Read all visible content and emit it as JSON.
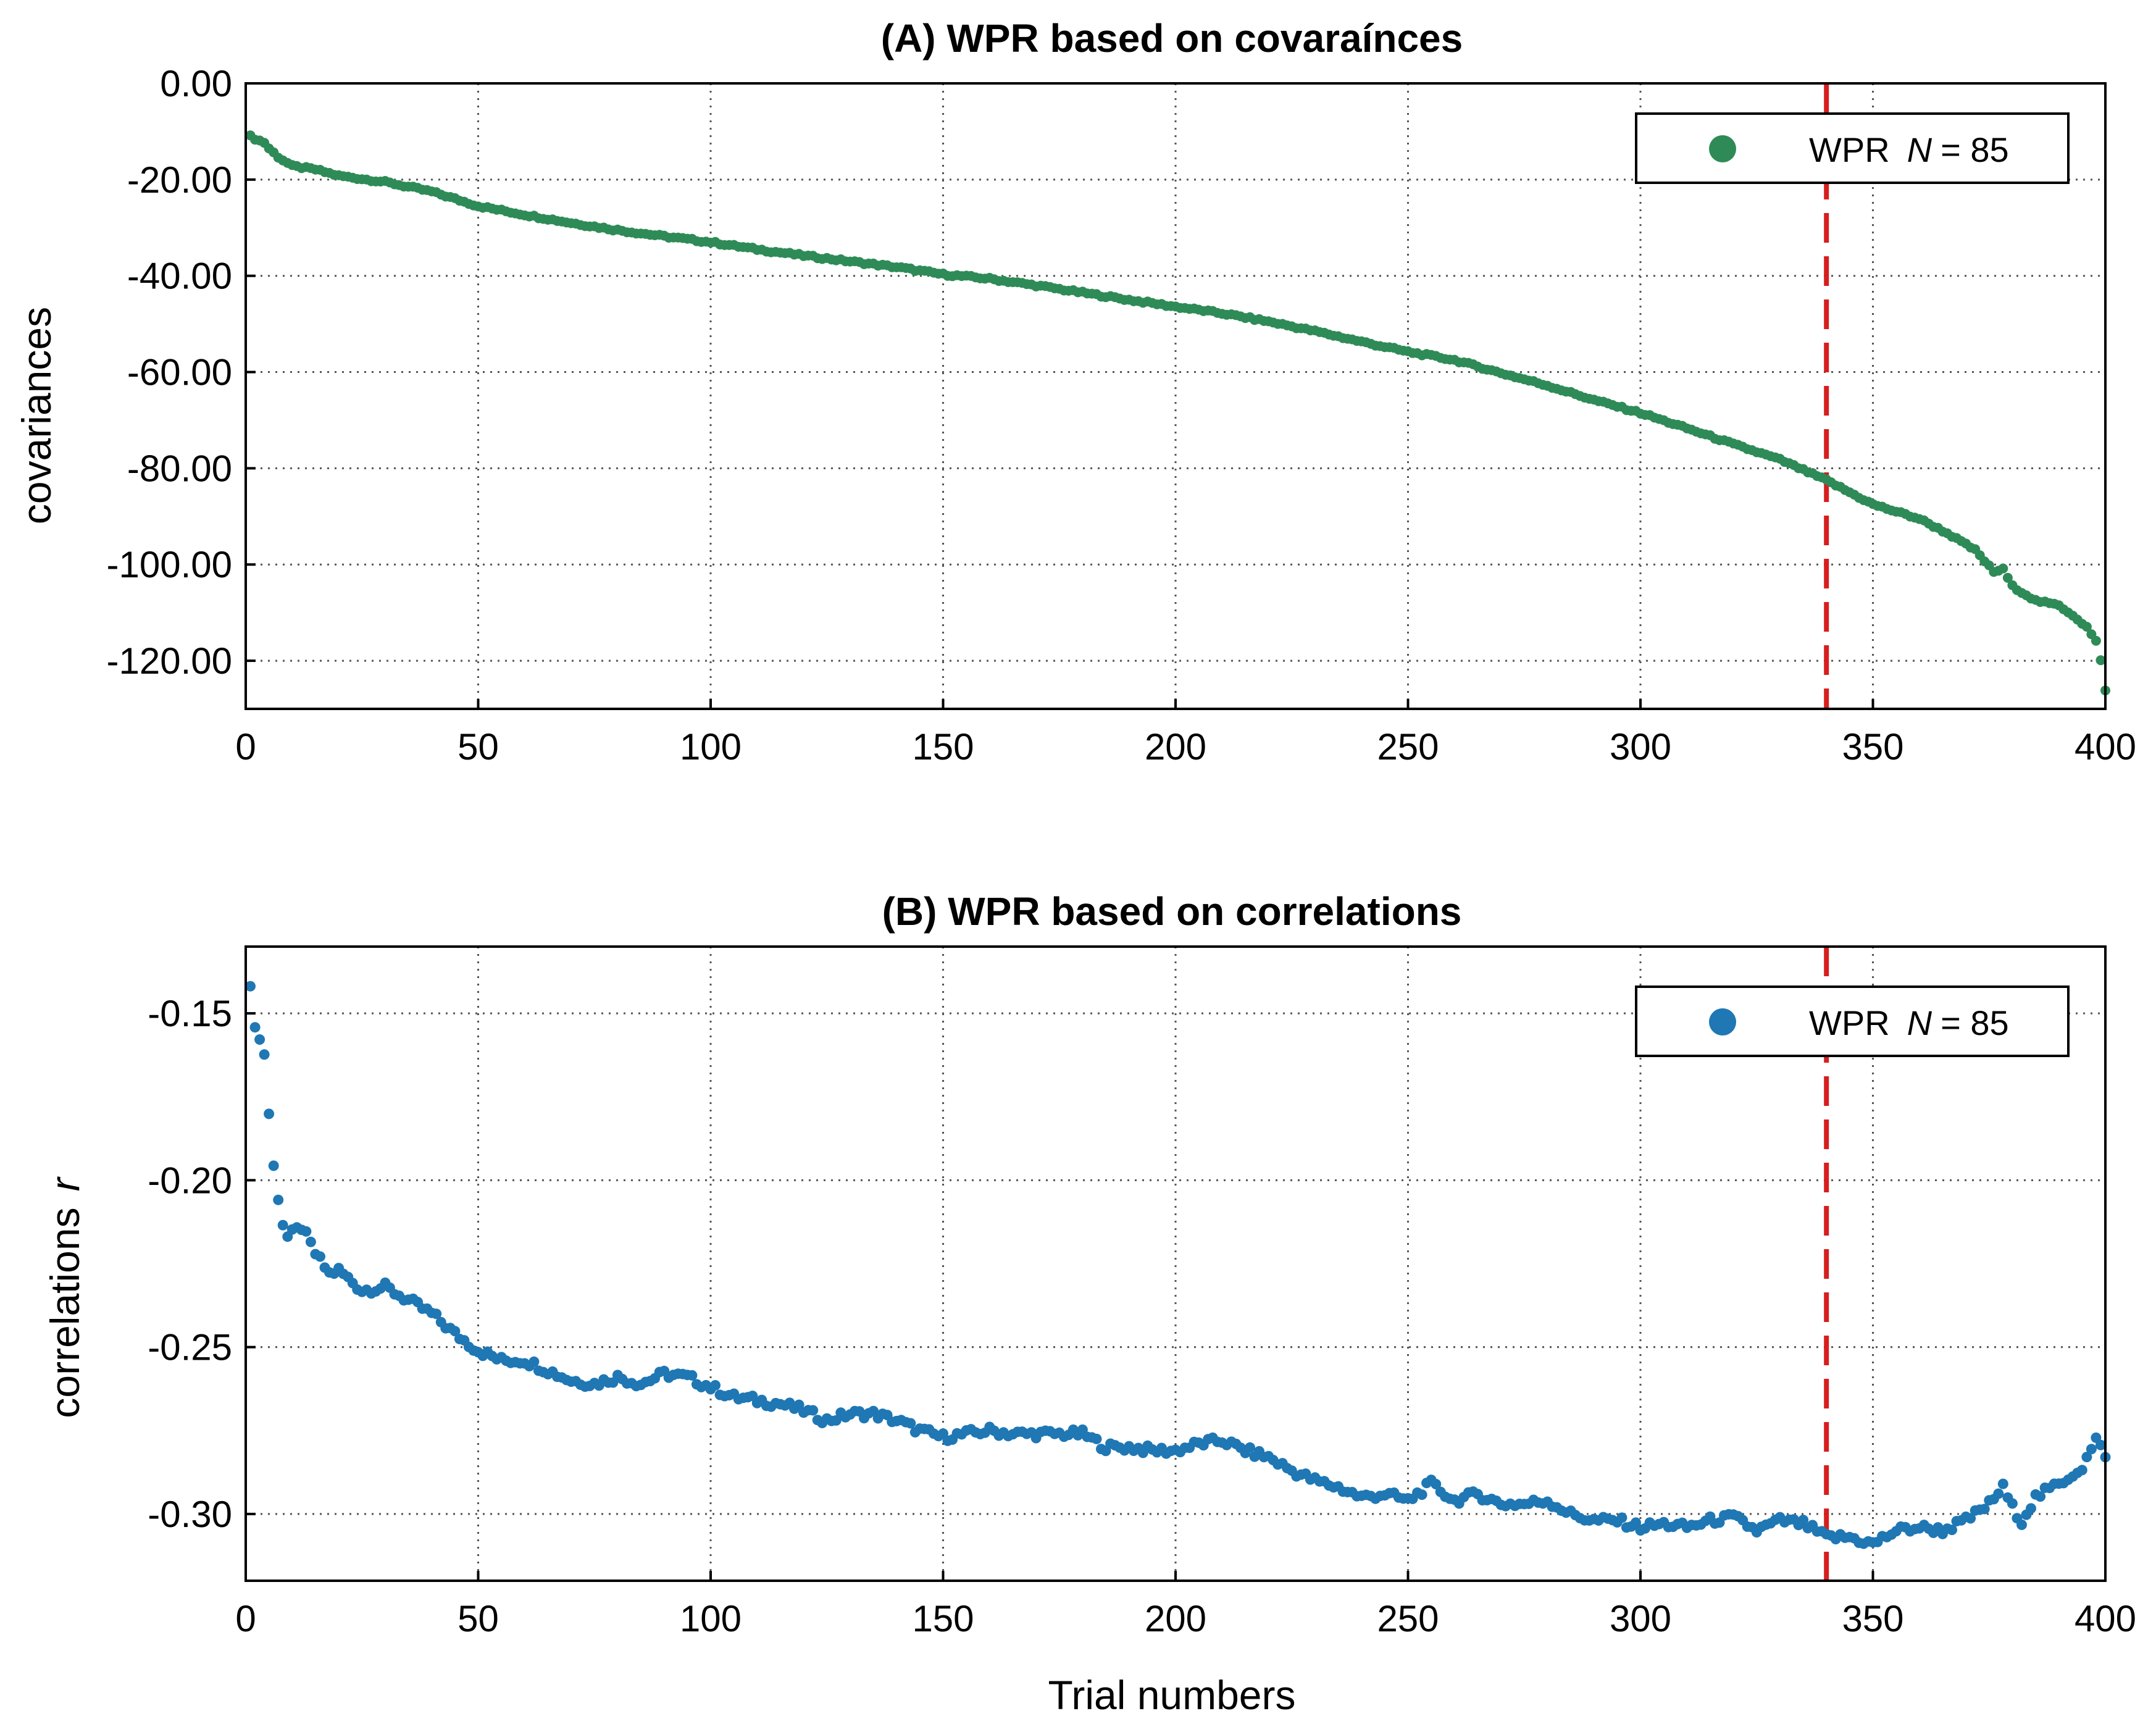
{
  "chart_data": [
    {
      "type": "scatter",
      "title": "(A) WPR based on covaraínces",
      "title_text": "(A) WPR based on covaraínces",
      "ylabel": "covariances",
      "xlabel": "",
      "xlim": [
        0,
        400
      ],
      "ylim": [
        -130,
        0
      ],
      "xticks": [
        0,
        50,
        100,
        150,
        200,
        250,
        300,
        350,
        400
      ],
      "xtick_labels": [
        "0",
        "50",
        "100",
        "150",
        "200",
        "250",
        "300",
        "350",
        "400"
      ],
      "yticks": [
        0,
        -20,
        -40,
        -60,
        -80,
        -100,
        -120
      ],
      "ytick_labels": [
        "0.00",
        "-20.00",
        "-40.00",
        "-60.00",
        "-80.00",
        "-100.00",
        "-120.00"
      ],
      "grid": true,
      "legend": {
        "label": "WPR",
        "stat_symbol": "N",
        "stat_text": "= 85",
        "position": "top-right"
      },
      "vline_x": 340,
      "color": "#2e8b57",
      "vline_color": "#d71e1e",
      "x": [
        1,
        2,
        4,
        5,
        7,
        10,
        15,
        20,
        30,
        40,
        50,
        60,
        70,
        80,
        90,
        100,
        110,
        120,
        130,
        140,
        150,
        160,
        170,
        180,
        190,
        200,
        210,
        220,
        230,
        240,
        250,
        260,
        270,
        280,
        290,
        300,
        310,
        320,
        330,
        340,
        345,
        350,
        360,
        366,
        372,
        376,
        378,
        380,
        385,
        390,
        393,
        396,
        398,
        399,
        400
      ],
      "y": [
        -11,
        -11.5,
        -12.3,
        -13.5,
        -15.3,
        -17.2,
        -17.9,
        -19.2,
        -20.5,
        -22.5,
        -25.5,
        -27.3,
        -29,
        -30.5,
        -31.8,
        -33,
        -34.5,
        -35.8,
        -37,
        -38.2,
        -39.7,
        -40.6,
        -42,
        -43.5,
        -45,
        -46.4,
        -47.8,
        -49.5,
        -51.5,
        -53.7,
        -55.8,
        -57.5,
        -60.2,
        -62.8,
        -65.8,
        -68.5,
        -71.7,
        -75,
        -78.2,
        -82.5,
        -85,
        -87.5,
        -90.5,
        -93.5,
        -97,
        -101.5,
        -101,
        -104.5,
        -107.5,
        -108.5,
        -110.5,
        -113,
        -116,
        -120,
        -126
      ]
    },
    {
      "type": "scatter",
      "title": "(B) WPR based on correlations",
      "title_text": "(B) WPR based on correlations",
      "ylabel": "correlations",
      "ylabel_symbol": "r",
      "xlabel": "Trial numbers",
      "xlim": [
        0,
        400
      ],
      "ylim": [
        -0.32,
        -0.13
      ],
      "xticks": [
        0,
        50,
        100,
        150,
        200,
        250,
        300,
        350,
        400
      ],
      "xtick_labels": [
        "0",
        "50",
        "100",
        "150",
        "200",
        "250",
        "300",
        "350",
        "400"
      ],
      "yticks": [
        -0.15,
        -0.2,
        -0.25,
        -0.3
      ],
      "ytick_labels": [
        "-0.15",
        "-0.20",
        "-0.25",
        "-0.30"
      ],
      "grid": true,
      "legend": {
        "label": "WPR",
        "stat_symbol": "N",
        "stat_text": "= 85",
        "position": "top-right"
      },
      "vline_x": 340,
      "color": "#1f77b4",
      "vline_color": "#d71e1e",
      "x": [
        1,
        2,
        3,
        4,
        5,
        6,
        7,
        8,
        9,
        10,
        12,
        15,
        18,
        20,
        25,
        30,
        35,
        40,
        45,
        50,
        55,
        60,
        65,
        70,
        75,
        80,
        85,
        90,
        95,
        100,
        105,
        110,
        115,
        120,
        125,
        130,
        135,
        140,
        145,
        150,
        155,
        160,
        165,
        170,
        175,
        180,
        185,
        190,
        195,
        200,
        205,
        210,
        215,
        220,
        225,
        230,
        235,
        240,
        245,
        250,
        255,
        260,
        265,
        270,
        275,
        280,
        285,
        290,
        295,
        300,
        305,
        310,
        315,
        320,
        325,
        330,
        335,
        340,
        345,
        350,
        355,
        360,
        365,
        370,
        375,
        378,
        380,
        382,
        385,
        390,
        395,
        398,
        400
      ],
      "y": [
        -0.143,
        -0.153,
        -0.158,
        -0.162,
        -0.18,
        -0.196,
        -0.205,
        -0.213,
        -0.217,
        -0.216,
        -0.214,
        -0.222,
        -0.228,
        -0.227,
        -0.233,
        -0.232,
        -0.236,
        -0.24,
        -0.246,
        -0.251,
        -0.254,
        -0.254,
        -0.257,
        -0.26,
        -0.261,
        -0.259,
        -0.261,
        -0.258,
        -0.259,
        -0.262,
        -0.265,
        -0.266,
        -0.267,
        -0.269,
        -0.272,
        -0.27,
        -0.27,
        -0.272,
        -0.275,
        -0.277,
        -0.276,
        -0.275,
        -0.276,
        -0.276,
        -0.276,
        -0.276,
        -0.28,
        -0.28,
        -0.281,
        -0.281,
        -0.279,
        -0.278,
        -0.281,
        -0.283,
        -0.287,
        -0.29,
        -0.292,
        -0.295,
        -0.294,
        -0.296,
        -0.291,
        -0.296,
        -0.294,
        -0.297,
        -0.297,
        -0.296,
        -0.3,
        -0.302,
        -0.302,
        -0.304,
        -0.303,
        -0.304,
        -0.302,
        -0.301,
        -0.305,
        -0.302,
        -0.303,
        -0.307,
        -0.307,
        -0.309,
        -0.305,
        -0.304,
        -0.305,
        -0.302,
        -0.297,
        -0.292,
        -0.298,
        -0.302,
        -0.295,
        -0.291,
        -0.286,
        -0.278,
        -0.282
      ]
    }
  ]
}
